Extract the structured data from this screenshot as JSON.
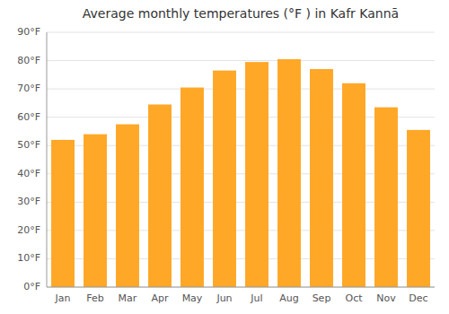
{
  "chart_data": {
    "type": "bar",
    "title": "Average monthly temperatures (°F ) in Kafr Kannā",
    "categories": [
      "Jan",
      "Feb",
      "Mar",
      "Apr",
      "May",
      "Jun",
      "Jul",
      "Aug",
      "Sep",
      "Oct",
      "Nov",
      "Dec"
    ],
    "values": [
      52,
      54,
      57.5,
      64.5,
      70.5,
      76.5,
      79.5,
      80.5,
      77,
      72,
      63.5,
      55.5
    ],
    "color": "#FFA726",
    "ylim": [
      0,
      90
    ],
    "yticks": [
      {
        "value": 0,
        "label": "0°F"
      },
      {
        "value": 10,
        "label": "10°F"
      },
      {
        "value": 20,
        "label": "20°F"
      },
      {
        "value": 30,
        "label": "30°F"
      },
      {
        "value": 40,
        "label": "40°F"
      },
      {
        "value": 50,
        "label": "50°F"
      },
      {
        "value": 60,
        "label": "60°F"
      },
      {
        "value": 70,
        "label": "70°F"
      },
      {
        "value": 80,
        "label": "80°F"
      },
      {
        "value": 90,
        "label": "90°F"
      }
    ],
    "grid": true
  }
}
